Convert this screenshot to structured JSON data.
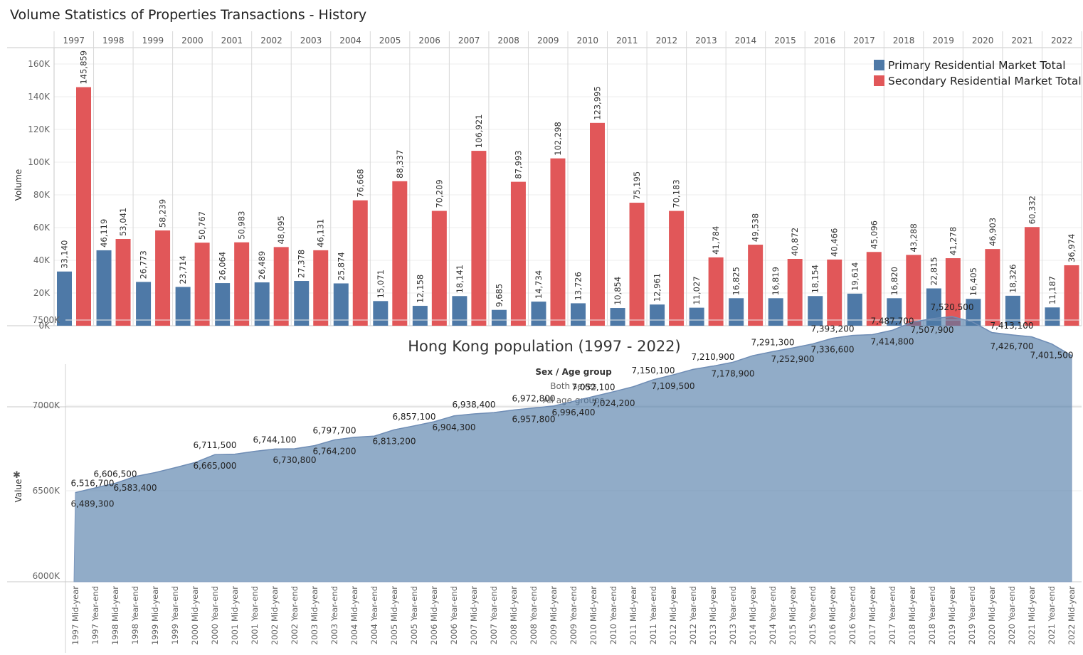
{
  "titles": {
    "volume": "Volume Statistics of Properties Transactions - History",
    "population": "Hong Kong population (1997 - 2022)"
  },
  "chart_data": [
    {
      "type": "bar",
      "ylabel": "Volume",
      "ylim": [
        0,
        170000
      ],
      "yticks": [
        "0K",
        "20K",
        "40K",
        "60K",
        "80K",
        "100K",
        "120K",
        "140K",
        "160K"
      ],
      "categories": [
        "1997",
        "1998",
        "1999",
        "2000",
        "2001",
        "2002",
        "2003",
        "2004",
        "2005",
        "2006",
        "2007",
        "2008",
        "2009",
        "2010",
        "2011",
        "2012",
        "2013",
        "2014",
        "2015",
        "2016",
        "2017",
        "2018",
        "2019",
        "2020",
        "2021",
        "2022"
      ],
      "legend_position": "top-right",
      "series": [
        {
          "name": "Primary Residential Market Total",
          "color": "#4e79a7",
          "values": [
            33140,
            46119,
            26773,
            23714,
            26064,
            26489,
            27378,
            25874,
            15071,
            12158,
            18141,
            9685,
            14734,
            13726,
            10854,
            12961,
            11027,
            16825,
            16819,
            18154,
            19614,
            16820,
            22815,
            16405,
            18326,
            11187
          ],
          "labels": [
            "33,140",
            "46,119",
            "26,773",
            "23,714",
            "26,064",
            "26,489",
            "27,378",
            "25,874",
            "15,071",
            "12,158",
            "18,141",
            "9,685",
            "14,734",
            "13,726",
            "10,854",
            "12,961",
            "11,027",
            "16,825",
            "16,819",
            "18,154",
            "19,614",
            "16,820",
            "22,815",
            "16,405",
            "18,326",
            "11,187"
          ]
        },
        {
          "name": "Secondary Residential Market Total",
          "color": "#e15759",
          "values": [
            145859,
            53041,
            58239,
            50767,
            50983,
            48095,
            46131,
            76668,
            88337,
            70209,
            106921,
            87993,
            102298,
            123995,
            75195,
            70183,
            41784,
            49538,
            40872,
            40466,
            45096,
            43288,
            41278,
            46903,
            60332,
            36974
          ],
          "labels": [
            "145,859",
            "53,041",
            "58,239",
            "50,767",
            "50,983",
            "48,095",
            "46,131",
            "76,668",
            "88,337",
            "70,209",
            "106,921",
            "87,993",
            "102,298",
            "123,995",
            "75,195",
            "70,183",
            "41,784",
            "49,538",
            "40,872",
            "40,466",
            "45,096",
            "43,288",
            "41,278",
            "46,903",
            "60,332",
            "36,974"
          ]
        }
      ]
    },
    {
      "type": "area",
      "ylabel": "Value",
      "ylim": [
        6000000,
        7640000
      ],
      "yticks": [
        "6000K",
        "6500K",
        "7000K",
        "7500K"
      ],
      "header": {
        "title": "Sex  /  Age group",
        "sex": "Both sexes",
        "age": "All age groups"
      },
      "color": "#4e79a7",
      "x": [
        "1997 Mid-year",
        "1997 Year-end",
        "1998 Mid-year",
        "1998 Year-end",
        "1999 Mid-year",
        "1999 Year-end",
        "2000 Mid-year",
        "2000 Year-end",
        "2001 Mid-year",
        "2001 Year-end",
        "2002 Mid-year",
        "2002 Year-end",
        "2003 Mid-year",
        "2003 Year-end",
        "2004 Mid-year",
        "2004 Year-end",
        "2005 Mid-year",
        "2005 Year-end",
        "2006 Mid-year",
        "2006 Year-end",
        "2007 Mid-year",
        "2007 Year-end",
        "2008 Mid-year",
        "2008 Year-end",
        "2009 Mid-year",
        "2009 Year-end",
        "2010 Mid-year",
        "2010 Year-end",
        "2011 Mid-year",
        "2011 Year-end",
        "2012 Mid-year",
        "2012 Year-end",
        "2013 Mid-year",
        "2013 Year-end",
        "2014 Mid-year",
        "2014 Year-end",
        "2015 Mid-year",
        "2015 Year-end",
        "2016 Mid-year",
        "2016 Year-end",
        "2017 Mid-year",
        "2017 Year-end",
        "2018 Mid-year",
        "2018 Year-end",
        "2019 Mid-year",
        "2019 Year-end",
        "2020 Mid-year",
        "2020 Year-end",
        "2021 Mid-year",
        "2021 Year-end",
        "2022 Mid-year"
      ],
      "values": [
        6489300,
        6516700,
        6543600,
        6583400,
        6606500,
        6635000,
        6665000,
        6711500,
        6714000,
        6730800,
        6744100,
        6746000,
        6764200,
        6797700,
        6813200,
        6820000,
        6857100,
        6880000,
        6904300,
        6938400,
        6950000,
        6957800,
        6972800,
        6985000,
        6996400,
        7024200,
        7052100,
        7080000,
        7109500,
        7150100,
        7178900,
        7210900,
        7230000,
        7252900,
        7291300,
        7315000,
        7336600,
        7360000,
        7393200,
        7410000,
        7414800,
        7440000,
        7487700,
        7507900,
        7520500,
        7490000,
        7426700,
        7413100,
        7401500,
        7360000,
        7291500
      ],
      "labels": [
        {
          "i": 0,
          "text": "6,516,700",
          "pos": "above"
        },
        {
          "i": 0,
          "text": "6,489,300",
          "pos": "below"
        },
        {
          "i": 2,
          "text": "6,606,500",
          "pos": "above"
        },
        {
          "i": 3,
          "text": "6,583,400",
          "pos": "below"
        },
        {
          "i": 7,
          "text": "6,711,500",
          "pos": "above"
        },
        {
          "i": 7,
          "text": "6,665,000",
          "pos": "below"
        },
        {
          "i": 10,
          "text": "6,744,100",
          "pos": "above"
        },
        {
          "i": 11,
          "text": "6,730,800",
          "pos": "below"
        },
        {
          "i": 13,
          "text": "6,797,700",
          "pos": "above"
        },
        {
          "i": 13,
          "text": "6,764,200",
          "pos": "below"
        },
        {
          "i": 17,
          "text": "6,857,100",
          "pos": "above"
        },
        {
          "i": 16,
          "text": "6,813,200",
          "pos": "below"
        },
        {
          "i": 20,
          "text": "6,938,400",
          "pos": "above"
        },
        {
          "i": 19,
          "text": "6,904,300",
          "pos": "below"
        },
        {
          "i": 23,
          "text": "6,972,800",
          "pos": "above"
        },
        {
          "i": 23,
          "text": "6,957,800",
          "pos": "below"
        },
        {
          "i": 26,
          "text": "7,052,100",
          "pos": "above"
        },
        {
          "i": 25,
          "text": "6,996,400",
          "pos": "below"
        },
        {
          "i": 27,
          "text": "7,024,200",
          "pos": "below"
        },
        {
          "i": 29,
          "text": "7,150,100",
          "pos": "above"
        },
        {
          "i": 30,
          "text": "7,109,500",
          "pos": "below"
        },
        {
          "i": 32,
          "text": "7,210,900",
          "pos": "above"
        },
        {
          "i": 33,
          "text": "7,178,900",
          "pos": "below"
        },
        {
          "i": 35,
          "text": "7,291,300",
          "pos": "above"
        },
        {
          "i": 36,
          "text": "7,252,900",
          "pos": "below"
        },
        {
          "i": 38,
          "text": "7,393,200",
          "pos": "above"
        },
        {
          "i": 38,
          "text": "7,336,600",
          "pos": "below"
        },
        {
          "i": 41,
          "text": "7,414,800",
          "pos": "below"
        },
        {
          "i": 41,
          "text": "7,487,700",
          "pos": "above"
        },
        {
          "i": 44,
          "text": "7,520,500",
          "pos": "above"
        },
        {
          "i": 43,
          "text": "7,507,900",
          "pos": "below"
        },
        {
          "i": 47,
          "text": "7,426,700",
          "pos": "below"
        },
        {
          "i": 47,
          "text": "7,413,100",
          "pos": "above"
        },
        {
          "i": 49,
          "text": "7,401,500",
          "pos": "below"
        }
      ]
    }
  ]
}
